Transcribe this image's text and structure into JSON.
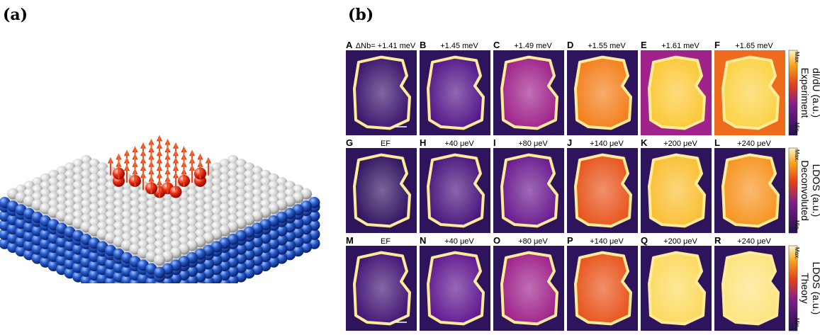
{
  "panel_labels": {
    "a": "(a)",
    "b": "(b)"
  },
  "rows": [
    {
      "side_label_lines": [
        "Experiment",
        "dI/dU (a.u.)"
      ],
      "tiles": [
        {
          "letter": "A",
          "energy": "ΔNb= +1.41 meV",
          "level": 0.08
        },
        {
          "letter": "B",
          "energy": "+1.45 meV",
          "level": 0.15
        },
        {
          "letter": "C",
          "energy": "+1.49 meV",
          "level": 0.3
        },
        {
          "letter": "D",
          "energy": "+1.55 meV",
          "level": 0.65
        },
        {
          "letter": "E",
          "energy": "+1.61 meV",
          "level": 0.82
        },
        {
          "letter": "F",
          "energy": "+1.65 meV",
          "level": 0.85
        }
      ]
    },
    {
      "side_label_lines": [
        "Deconvoluted",
        "LDOS (a.u.)"
      ],
      "tiles": [
        {
          "letter": "G",
          "energy": "EF",
          "level": 0.05
        },
        {
          "letter": "H",
          "energy": "+40 μeV",
          "level": 0.12
        },
        {
          "letter": "I",
          "energy": "+80 μeV",
          "level": 0.2
        },
        {
          "letter": "J",
          "energy": "+140 μeV",
          "level": 0.55
        },
        {
          "letter": "K",
          "energy": "+200 μeV",
          "level": 0.8
        },
        {
          "letter": "L",
          "energy": "+240 μeV",
          "level": 0.7
        }
      ]
    },
    {
      "side_label_lines": [
        "Theory",
        "LDOS (a.u.)"
      ],
      "tiles": [
        {
          "letter": "M",
          "energy": "EF",
          "level": 0.1
        },
        {
          "letter": "N",
          "energy": "+40 μeV",
          "level": 0.18
        },
        {
          "letter": "O",
          "energy": "+80 μeV",
          "level": 0.3
        },
        {
          "letter": "P",
          "energy": "+140 μeV",
          "level": 0.55
        },
        {
          "letter": "Q",
          "energy": "+200 μeV",
          "level": 0.88
        },
        {
          "letter": "R",
          "energy": "+240 μeV",
          "level": 0.92
        }
      ]
    }
  ],
  "colorbar": {
    "max_label": "Max.",
    "min_label": "Min."
  },
  "colors": {
    "cmap_low": "#20124d",
    "cmap_mid": "#d8341c",
    "cmap_high": "#fff7c0",
    "substrate": "#1f4fbf",
    "overlayer": "#d0d0d0",
    "spin": "#f0441c"
  }
}
